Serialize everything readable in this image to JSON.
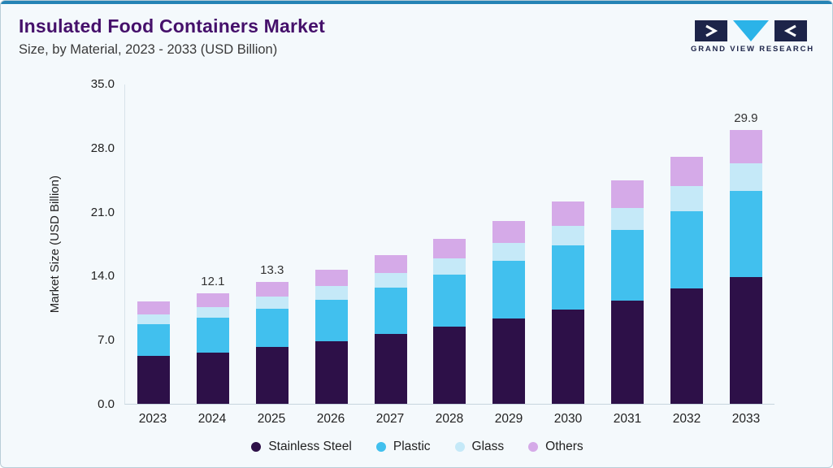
{
  "header": {
    "title": "Insulated Food Containers Market",
    "subtitle": "Size, by Material, 2023 - 2033 (USD Billion)"
  },
  "logo": {
    "text": "GRAND VIEW RESEARCH",
    "navy": "#1d2449",
    "cyan": "#2bb3e8"
  },
  "chart_data": {
    "type": "bar",
    "stacked": true,
    "title": "Insulated Food Containers Market Size, by Material, 2023 - 2033 (USD Billion)",
    "xlabel": "",
    "ylabel": "Market Size (USD Billion)",
    "ylim": [
      0,
      35
    ],
    "yticks": [
      0.0,
      7.0,
      14.0,
      21.0,
      28.0,
      35.0
    ],
    "grid": false,
    "legend_position": "bottom",
    "categories": [
      "2023",
      "2024",
      "2025",
      "2026",
      "2027",
      "2028",
      "2029",
      "2030",
      "2031",
      "2032",
      "2033"
    ],
    "series": [
      {
        "name": "Stainless Steel",
        "color": "#2d1048",
        "values": [
          5.2,
          5.6,
          6.2,
          6.8,
          7.6,
          8.4,
          9.3,
          10.3,
          11.3,
          12.6,
          13.9
        ]
      },
      {
        "name": "Plastic",
        "color": "#41c0ee",
        "values": [
          3.5,
          3.8,
          4.2,
          4.6,
          5.1,
          5.7,
          6.3,
          7.0,
          7.7,
          8.5,
          9.4
        ]
      },
      {
        "name": "Glass",
        "color": "#c5e9f8",
        "values": [
          1.1,
          1.2,
          1.3,
          1.5,
          1.6,
          1.8,
          2.0,
          2.2,
          2.4,
          2.7,
          3.0
        ]
      },
      {
        "name": "Others",
        "color": "#d5aae8",
        "values": [
          1.4,
          1.5,
          1.6,
          1.8,
          2.0,
          2.1,
          2.4,
          2.6,
          3.0,
          3.2,
          3.6
        ]
      }
    ],
    "totals": [
      11.2,
      12.1,
      13.3,
      14.7,
      16.3,
      18.0,
      20.0,
      22.1,
      24.4,
      27.0,
      29.9
    ],
    "bar_labels": [
      "",
      "12.1",
      "13.3",
      "",
      "",
      "",
      "",
      "",
      "",
      "",
      "29.9"
    ]
  }
}
